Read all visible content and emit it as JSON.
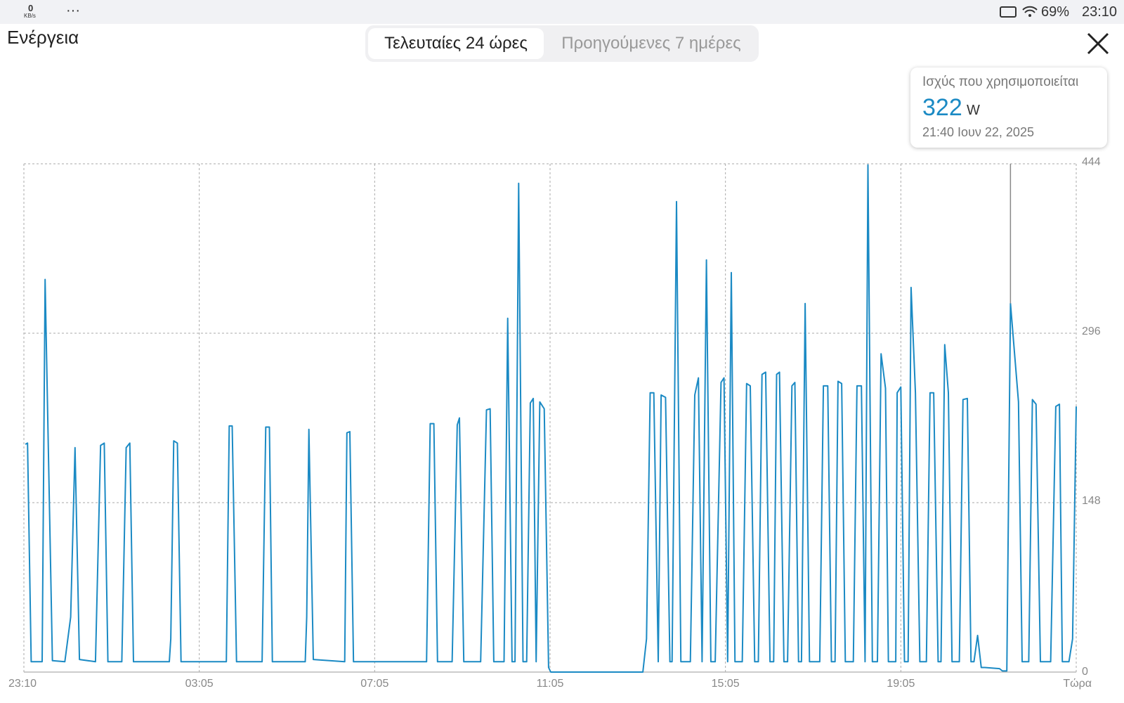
{
  "status_bar": {
    "net_rate": "0",
    "net_unit": "KB/s",
    "more": "···",
    "battery": "69%",
    "clock": "23:10"
  },
  "header": {
    "title": "Ενέργεια"
  },
  "tabs": [
    "Τελευταίες 24 ώρες",
    "Προηγούμενες 7 ημέρες"
  ],
  "tooltip": {
    "label": "Ισχύς που χρησιμοποιείται",
    "value": 322,
    "unit": "W",
    "time": "21:40  Ιουν 22, 2025"
  },
  "chart_data": {
    "type": "line",
    "color": "#1b8ac4",
    "grid": true,
    "xlim": [
      0,
      1440
    ],
    "ylim": [
      0,
      444
    ],
    "xticks": [
      {
        "value": 0,
        "label": "23:10"
      },
      {
        "value": 240,
        "label": "03:05"
      },
      {
        "value": 480,
        "label": "07:05"
      },
      {
        "value": 720,
        "label": "11:05"
      },
      {
        "value": 960,
        "label": "15:05"
      },
      {
        "value": 1200,
        "label": "19:05"
      },
      {
        "value": 1440,
        "label": "Τώρα"
      }
    ],
    "yticks": [
      0,
      148,
      296,
      444
    ],
    "x": [
      2,
      5,
      10,
      25,
      29,
      39,
      56,
      64,
      70,
      76,
      98,
      105,
      110,
      115,
      134,
      140,
      145,
      150,
      199,
      201,
      205,
      210,
      215,
      277,
      281,
      285,
      291,
      326,
      331,
      336,
      340,
      385,
      387,
      390,
      396,
      439,
      442,
      446,
      451,
      551,
      556,
      561,
      566,
      586,
      593,
      596,
      602,
      625,
      633,
      638,
      643,
      657,
      662,
      668,
      672,
      677,
      683,
      688,
      693,
      697,
      701,
      706,
      712,
      718,
      721,
      847,
      852,
      857,
      862,
      868,
      872,
      878,
      884,
      887,
      893,
      899,
      912,
      918,
      923,
      928,
      934,
      940,
      946,
      954,
      958,
      963,
      968,
      973,
      983,
      989,
      994,
      1000,
      1005,
      1010,
      1015,
      1021,
      1026,
      1030,
      1034,
      1040,
      1045,
      1051,
      1055,
      1060,
      1064,
      1069,
      1075,
      1089,
      1094,
      1100,
      1105,
      1110,
      1114,
      1119,
      1124,
      1135,
      1140,
      1146,
      1151,
      1155,
      1161,
      1168,
      1173,
      1179,
      1183,
      1193,
      1195,
      1200,
      1205,
      1210,
      1214,
      1220,
      1226,
      1235,
      1240,
      1245,
      1251,
      1255,
      1260,
      1265,
      1270,
      1280,
      1285,
      1291,
      1296,
      1300,
      1305,
      1310,
      1315,
      1335,
      1339,
      1345,
      1350,
      1361,
      1366,
      1375,
      1380,
      1385,
      1391,
      1405,
      1412,
      1417,
      1421,
      1430,
      1435,
      1440
    ],
    "values": [
      199,
      200,
      9,
      9,
      343,
      10,
      9,
      48,
      196,
      11,
      9,
      198,
      200,
      9,
      9,
      196,
      200,
      9,
      9,
      29,
      202,
      200,
      9,
      9,
      215,
      215,
      9,
      9,
      214,
      214,
      9,
      9,
      48,
      212,
      11,
      9,
      209,
      210,
      9,
      9,
      217,
      217,
      9,
      9,
      216,
      222,
      9,
      9,
      229,
      230,
      9,
      9,
      309,
      9,
      9,
      427,
      9,
      9,
      235,
      239,
      9,
      236,
      230,
      4,
      0,
      0,
      29,
      244,
      244,
      9,
      242,
      240,
      9,
      9,
      411,
      9,
      9,
      242,
      257,
      9,
      360,
      9,
      9,
      253,
      257,
      9,
      349,
      9,
      9,
      252,
      250,
      9,
      9,
      260,
      262,
      9,
      9,
      260,
      262,
      9,
      9,
      250,
      253,
      9,
      9,
      322,
      9,
      9,
      250,
      250,
      9,
      9,
      254,
      252,
      9,
      9,
      250,
      250,
      9,
      443,
      9,
      9,
      278,
      248,
      9,
      9,
      244,
      249,
      9,
      9,
      336,
      244,
      9,
      9,
      244,
      244,
      9,
      9,
      286,
      244,
      9,
      9,
      238,
      239,
      9,
      9,
      32,
      4,
      4,
      3,
      1,
      1,
      322,
      236,
      9,
      9,
      238,
      234,
      9,
      9,
      232,
      234,
      9,
      9,
      29,
      232
    ]
  }
}
